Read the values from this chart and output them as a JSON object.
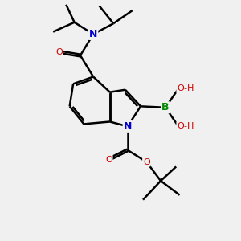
{
  "bg": "#f0f0f0",
  "bond_color": "#000000",
  "bond_lw": 1.8,
  "atom_colors": {
    "N": "#0000cc",
    "O": "#cc0000",
    "B": "#008800",
    "C": "#000000",
    "H": "#000000"
  },
  "font_size": 9,
  "fig_w": 3.0,
  "fig_h": 3.0,
  "dpi": 100
}
